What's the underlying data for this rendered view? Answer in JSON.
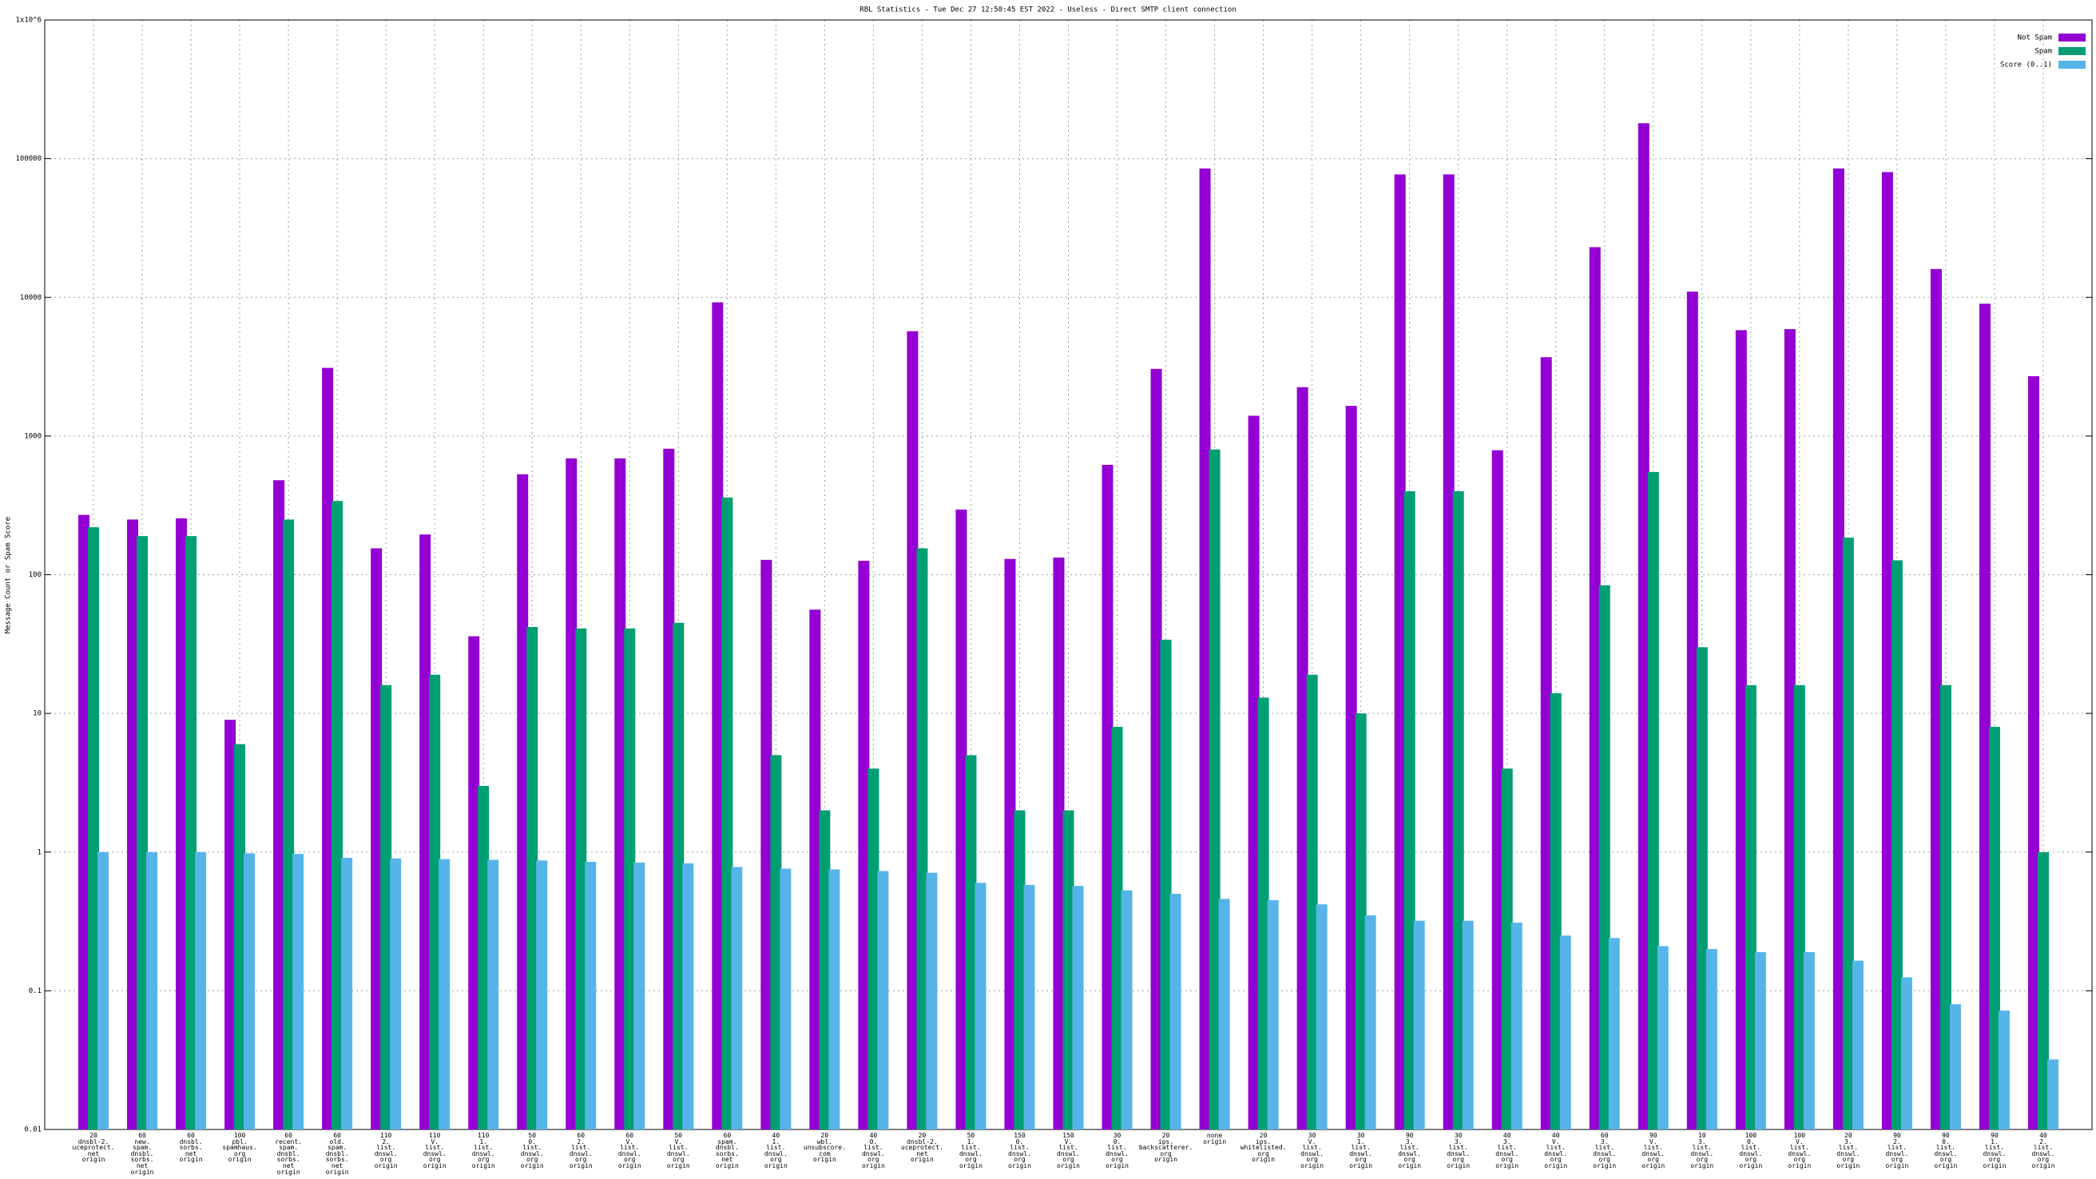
{
  "chart_data": {
    "type": "bar",
    "title": "RBL Statistics - Tue Dec 27 12:50:45 EST 2022 - Useless - Direct SMTP client connection",
    "ylabel": "Message Count or Spam Score",
    "log_scale": true,
    "grid": true,
    "legend": "top-right",
    "ylim": [
      0.01,
      1000000
    ],
    "yticks": [
      0.01,
      0.1,
      1,
      10,
      100,
      1000,
      10000,
      100000,
      {
        "value": 1000000,
        "label": "1x10^6"
      }
    ],
    "categories": [
      "20\ndnsbl-2.\nuceprotect.\nnet\norigin",
      "60\nnew.\nspam.\ndnsbl.\nsorbs.\nnet\norigin",
      "60\ndnsbl.\nsorbs.\nnet\norigin",
      "100\npbl.\nspamhaus.\norg\norigin",
      "60\nrecent.\nspam.\ndnsbl.\nsorbs.\nnet\norigin",
      "60\nold.\nspam.\ndnsbl.\nsorbs.\nnet\norigin",
      "110\n2.\nlist.\ndnswl.\norg\norigin",
      "110\nV.\nlist.\ndnswl.\norg\norigin",
      "110\n1.\nlist.\ndnswl.\norg\norigin",
      "50\n0.\nlist.\ndnswl.\norg\norigin",
      "60\n2.\nlist.\ndnswl.\norg\norigin",
      "60\nV.\nlist.\ndnswl.\norg\norigin",
      "50\nV.\nlist.\ndnswl.\norg\norigin",
      "60\nspam.\ndnsbl.\nsorbs.\nnet\norigin",
      "40\n1.\nlist.\ndnswl.\norg\norigin",
      "20\nwbl.\nunsubscore.\ncom\norigin",
      "40\n0.\nlist.\ndnswl.\norg\norigin",
      "20\ndnsbl-2.\nuceprotect.\nnet\norigin",
      "50\n1.\nlist.\ndnswl.\norg\norigin",
      "150\n0.\nlist.\ndnswl.\norg\norigin",
      "150\nV.\nlist.\ndnswl.\norg\norigin",
      "30\n0.\nlist.\ndnswl.\norg\norigin",
      "20\nips.\nbackscatterer.\norg\norigin",
      "none\norigin",
      "20\nips.\nwhitelisted.\norg\norigin",
      "30\nV.\nlist.\ndnswl.\norg\norigin",
      "30\n1.\nlist.\ndnswl.\norg\norigin",
      "90\n3.\nlist.\ndnswl.\norg\norigin",
      "30\n3.\nlist.\ndnswl.\norg\norigin",
      "40\n3.\nlist.\ndnswl.\norg\norigin",
      "40\nV.\nlist.\ndnswl.\norg\norigin",
      "60\n3.\nlist.\ndnswl.\norg\norigin",
      "90\nV.\nlist.\ndnswl.\norg\norigin",
      "10\n3.\nlist.\ndnswl.\norg\norigin",
      "100\n0.\nlist.\ndnswl.\norg\norigin",
      "100\nV.\nlist.\ndnswl.\norg\norigin",
      "20\n3.\nlist.\ndnswl.\norg\norigin",
      "90\n2.\nlist.\ndnswl.\norg\norigin",
      "90\n0.\nlist.\ndnswl.\norg\norigin",
      "90\n1.\nlist.\ndnswl.\norg\norigin",
      "40\n2.\nlist.\ndnswl.\norg\norigin"
    ],
    "series": [
      {
        "name": "Not Spam",
        "color": "#9400d3",
        "values": [
          270,
          250,
          255,
          9,
          480,
          3100,
          155,
          195,
          36,
          530,
          690,
          690,
          810,
          9200,
          128,
          56,
          126,
          5700,
          295,
          130,
          133,
          620,
          3050,
          85000,
          1400,
          2250,
          1650,
          77000,
          77000,
          790,
          3700,
          23000,
          180000,
          11000,
          5800,
          5900,
          85000,
          80000,
          16000,
          9000,
          2700
        ]
      },
      {
        "name": "Spam",
        "color": "#009e73",
        "values": [
          220,
          190,
          190,
          6,
          250,
          340,
          16,
          19,
          3,
          42,
          41,
          41,
          45,
          360,
          5,
          2,
          4,
          155,
          5,
          2,
          2,
          8,
          34,
          800,
          13,
          19,
          10,
          400,
          400,
          4,
          14,
          84,
          550,
          30,
          16,
          16,
          185,
          127,
          16,
          8,
          1
        ]
      },
      {
        "name": "Score (0..1)",
        "color": "#56b4e9",
        "values": [
          1.0,
          1.0,
          1.0,
          0.98,
          0.97,
          0.91,
          0.9,
          0.89,
          0.88,
          0.87,
          0.85,
          0.84,
          0.83,
          0.78,
          0.76,
          0.75,
          0.73,
          0.71,
          0.6,
          0.58,
          0.57,
          0.53,
          0.5,
          0.46,
          0.45,
          0.42,
          0.35,
          0.32,
          0.32,
          0.31,
          0.25,
          0.24,
          0.21,
          0.2,
          0.19,
          0.19,
          0.165,
          0.125,
          0.08,
          0.072,
          0.032
        ]
      }
    ]
  }
}
